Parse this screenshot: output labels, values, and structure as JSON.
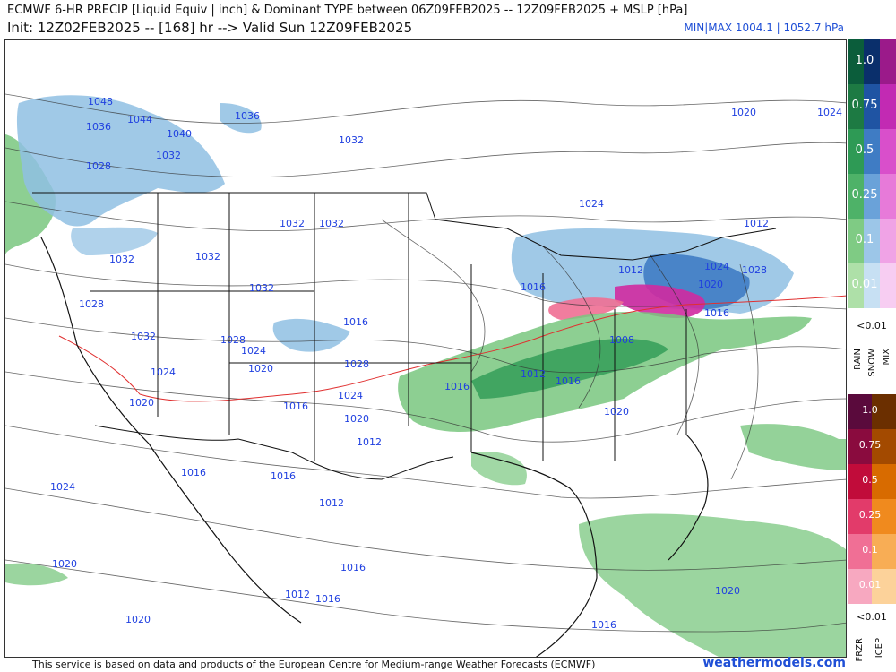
{
  "header": {
    "line1": "ECMWF 6-HR PRECIP [Liquid Equiv | inch] & Dominant TYPE between 06Z09FEB2025 -- 12Z09FEB2025 + MSLP [hPa]",
    "line2": "Init: 12Z02FEB2025 -- [168] hr --> Valid Sun 12Z09FEB2025",
    "minmax": "MIN|MAX 1004.1 | 1052.7 hPa"
  },
  "footer": {
    "attribution": "This service is based on data and products of the European Centre for Medium-range Weather Forecasts (ECMWF)",
    "brand": "weathermodels.com"
  },
  "legend": {
    "rain_snow_mix": {
      "levels": [
        "1.0",
        "0.75",
        "0.5",
        "0.25",
        "0.1",
        "0.01"
      ],
      "rain_colors": [
        "#0b5d3b",
        "#1d7a43",
        "#2e9a55",
        "#4eb268",
        "#7fcb84",
        "#aee0a8"
      ],
      "snow_colors": [
        "#0a2f6b",
        "#1f54a3",
        "#3f7cc4",
        "#6aa2d9",
        "#9cc6e8",
        "#c7e0f3"
      ],
      "mix_colors": [
        "#9b1a8a",
        "#c22ab3",
        "#d94fcb",
        "#e77ad9",
        "#f0a3e6",
        "#f7cdf2"
      ],
      "threshold": "<0.01",
      "labels": [
        "RAIN",
        "SNOW",
        "MIX"
      ]
    },
    "frzr_icep": {
      "levels": [
        "1.0",
        "0.75",
        "0.5",
        "0.25",
        "0.1",
        "0.01"
      ],
      "frzr_colors": [
        "#5a0a3c",
        "#8a0b3e",
        "#c10c3a",
        "#e23b6a",
        "#f06f95",
        "#f7a8c0"
      ],
      "icep_colors": [
        "#6b2f00",
        "#a34a00",
        "#d86b00",
        "#f08a1e",
        "#f8ad55",
        "#fcd29a"
      ],
      "threshold": "<0.01",
      "labels": [
        "FRZR",
        "ICEP"
      ]
    }
  },
  "map": {
    "colors": {
      "rain": "#79c77f",
      "snow": "#8fbfe3",
      "snow_heavy": "#3a78c2",
      "mix": "#d02aa0",
      "frzr": "#ef6f93",
      "isobar": "#333333",
      "isobar_label": "#1f3fe0",
      "freezing": "#e03030"
    },
    "isobar_labels": [
      "1048",
      "1044",
      "1036",
      "1040",
      "1032",
      "1028",
      "1036",
      "1032",
      "1032",
      "1032",
      "1032",
      "1032",
      "1032",
      "1028",
      "1032",
      "1028",
      "1024",
      "1024",
      "1020",
      "1020",
      "1016",
      "1028",
      "1024",
      "1020",
      "1012",
      "1016",
      "1024",
      "1016",
      "1012",
      "1020",
      "1024",
      "1020",
      "1012",
      "1008",
      "1012",
      "1016",
      "1016",
      "1020",
      "1024",
      "1028",
      "1024",
      "1020",
      "1016",
      "1012",
      "1016",
      "1012",
      "1016",
      "1020",
      "1016",
      "1016",
      "1020",
      "1016"
    ]
  }
}
